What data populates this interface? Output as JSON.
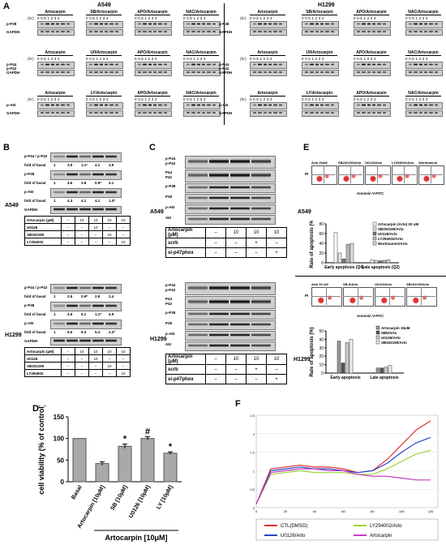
{
  "panel_letters": {
    "A": "A",
    "B": "B",
    "C": "C",
    "D": "D",
    "E": "E",
    "F": "F"
  },
  "cells": {
    "a549": "A549",
    "h1299": "H1299"
  },
  "panelA": {
    "hr_label": "(hr)",
    "timepoints": "0 0.5 1 2 3 4",
    "left": {
      "row1": [
        "Artocarpin",
        "SB/Artocarpin",
        "APO/Artocarpin",
        "NAC/Artocarpin"
      ],
      "row2": [
        "Artocarpin",
        "U0/Artocarpin",
        "APO/Artocarpin",
        "NAC/Artocarpin"
      ],
      "row3": [
        "Artocarpin",
        "LY/Artocarpin",
        "APO/Artocarpin",
        "NAC/Artocarpin"
      ]
    },
    "right": {
      "row1": [
        "Artocarpin",
        "SB/Artocarpin",
        "APO/Artocarpin",
        "NAC/Artocarpin"
      ],
      "row2": [
        "Artocarpin",
        "U0/Artocarpin",
        "APO/Artocarpin",
        "NAC/Artocarpin"
      ],
      "row3": [
        "Artocarpin",
        "LY/Artocarpin",
        "APO/Artocarpin",
        "NAC/Artocarpin"
      ]
    },
    "labels": {
      "p38": "p-P38",
      "gapdh": "GAPDH",
      "p44": "p-P44",
      "p42": "p-P42",
      "akt": "p-Akt"
    }
  },
  "panelB": {
    "fold": "fold of basal",
    "a549": {
      "rows": [
        {
          "label": "p-P44 / p-P42",
          "values": [
            "1",
            "3.9",
            "1.1*",
            "4.1",
            "3.9"
          ]
        },
        {
          "label": "p-P38",
          "values": [
            "1",
            "4.6",
            "3.8",
            "0.9*",
            "4.1"
          ]
        },
        {
          "label": "p-Akt",
          "values": [
            "1",
            "4.3",
            "4.1",
            "4.1",
            "1.3*"
          ]
        }
      ],
      "gapdh": "GAPDH",
      "table": {
        "head": "Artocarpin (μM)",
        "head_vals": [
          "–",
          "10",
          "10",
          "10",
          "10"
        ],
        "rows": [
          {
            "label": "U0126",
            "vals": [
              "–",
              "–",
              "10",
              "–",
              "–"
            ]
          },
          {
            "label": "SB202190",
            "vals": [
              "–",
              "–",
              "–",
              "10",
              "–"
            ]
          },
          {
            "label": "LY294002",
            "vals": [
              "–",
              "–",
              "–",
              "–",
              "10"
            ]
          }
        ]
      }
    },
    "h1299": {
      "rows": [
        {
          "label": "p-P44 / p-P42",
          "values": [
            "1",
            "2.5",
            "0.9*",
            "2.9",
            "2.4"
          ]
        },
        {
          "label": "p-P38",
          "values": [
            "1",
            "4.9",
            "5.1",
            "1.1*",
            "4.9"
          ]
        },
        {
          "label": "p-Akt",
          "values": [
            "1",
            "6.5",
            "6.3",
            "5.3",
            "2.2*"
          ]
        }
      ],
      "gapdh": "GAPDH",
      "table": {
        "head": "Artocarpin (μM)",
        "head_vals": [
          "–",
          "10",
          "10",
          "10",
          "10"
        ],
        "rows": [
          {
            "label": "U0126",
            "vals": [
              "–",
              "–",
              "10",
              "–",
              "–"
            ]
          },
          {
            "label": "SB202190",
            "vals": [
              "–",
              "–",
              "–",
              "10",
              "–"
            ]
          },
          {
            "label": "LY294002",
            "vals": [
              "–",
              "–",
              "–",
              "–",
              "10"
            ]
          }
        ]
      }
    }
  },
  "panelC": {
    "labels": [
      "p-P44",
      "p-P42",
      "P44",
      "P42",
      "p-P38",
      "P38",
      "p-Akt",
      "Akt"
    ],
    "table": {
      "head": "Artocarpin",
      "unit": "(μM)",
      "head_vals": [
        "–",
        "10",
        "10",
        "10"
      ],
      "rows": [
        {
          "label": "scrb",
          "vals": [
            "–",
            "–",
            "+",
            "–"
          ]
        },
        {
          "label": "si-p47phox",
          "vals": [
            "–",
            "–",
            "–",
            "+"
          ]
        }
      ]
    }
  },
  "panelD": {
    "ylabel": "cell viability (% of control)",
    "xgroup": "Artocarpin [10μM]",
    "xtick": "Artocarpin [10μM]"
  },
  "panelE": {
    "top_titles": [
      "Arto 20uM",
      "SB202190/Arto",
      "U0126/Arto",
      "LY294002/Arto",
      "Wortmannin"
    ],
    "bottom_titles": [
      "Arto 15 uM",
      "SB-5/Arto",
      "U0126/Arto",
      "SB202190/Arto"
    ],
    "axis_x": "Annexin V-FITC",
    "axis_y": "PI",
    "top_legend": [
      "Artocarpin (Arto) 20 uM",
      "SB202190/Arto",
      "U0126/Arto",
      "LY294002/Arto",
      "Wortmannin/Arto"
    ],
    "bottom_legend": [
      "Artocarpin 15uM",
      "SB5/Arto",
      "U0126/Arto",
      "SB202190/Arto"
    ],
    "ylabel": "Rate of apoptosis (%)",
    "top_xcats": [
      "Early apoptosis (Q4)",
      "Late apoptosis (Q2)"
    ],
    "bottom_xcats": [
      "Early apoptosis",
      "Late apoptosis"
    ]
  },
  "panelF": {
    "legend": [
      "CTL(DMSO)",
      "LY294002/Arto",
      "U0126/Arto",
      "Artocarpin"
    ],
    "colors": {
      "ctl": "#e0322a",
      "ly": "#9bd236",
      "u0": "#2e44c8",
      "arto": "#c23fc0"
    }
  },
  "chart_data": [
    {
      "type": "bar",
      "categories": [
        "Basal",
        "Artocarpin [10μM]",
        "SB [10μM]",
        "U0126 [10μM]",
        "LY [10μM]"
      ],
      "values": [
        100,
        42,
        82,
        100,
        66
      ],
      "errors": [
        0,
        4,
        5,
        4,
        3
      ],
      "annotations": [
        "",
        "",
        "*",
        "#",
        "*"
      ],
      "ylabel": "cell viability (% of control)",
      "xlabel": "Artocarpin [10μM]",
      "ylim": [
        0,
        150
      ],
      "yticks": [
        0,
        50,
        100,
        150
      ]
    },
    {
      "type": "bar",
      "categories": [
        "Early apoptosis (Q4)",
        "Late apoptosis (Q2)"
      ],
      "series": [
        {
          "name": "Artocarpin (Arto) 20 uM",
          "values": [
            62,
            6
          ]
        },
        {
          "name": "SB202190/Arto",
          "values": [
            20,
            5
          ]
        },
        {
          "name": "U0126/Arto",
          "values": [
            8,
            4
          ]
        },
        {
          "name": "LY294002/Arto",
          "values": [
            38,
            5
          ]
        },
        {
          "name": "Wortmannin/Arto",
          "values": [
            40,
            6
          ]
        }
      ],
      "ylabel": "Rate of apoptosis (%)",
      "ylim": [
        0,
        80
      ],
      "yticks": [
        0,
        20,
        40,
        60,
        80
      ]
    },
    {
      "type": "bar",
      "categories": [
        "Early apoptosis",
        "Late apoptosis"
      ],
      "series": [
        {
          "name": "Artocarpin 15uM",
          "values": [
            38,
            6
          ]
        },
        {
          "name": "SB5/Arto",
          "values": [
            12,
            6
          ]
        },
        {
          "name": "U0126/Arto",
          "values": [
            36,
            7
          ]
        },
        {
          "name": "SB202190/Arto",
          "values": [
            40,
            9
          ]
        }
      ],
      "ylabel": "Rate of apoptosis (%)",
      "ylim": [
        0,
        50
      ],
      "yticks": [
        0,
        10,
        20,
        30,
        40,
        50
      ]
    },
    {
      "type": "line",
      "x": [
        0,
        10,
        20,
        30,
        40,
        50,
        60,
        70,
        80,
        90,
        100,
        110,
        120
      ],
      "series": [
        {
          "name": "CTL(DMSO)",
          "values": [
            0.1,
            1.05,
            1.1,
            1.15,
            1.1,
            1.1,
            1.05,
            0.95,
            1.0,
            1.3,
            1.7,
            2.1,
            2.35
          ]
        },
        {
          "name": "LY294002/Arto",
          "values": [
            0.1,
            0.9,
            0.95,
            1.0,
            0.95,
            0.95,
            0.95,
            0.9,
            0.9,
            1.05,
            1.25,
            1.45,
            1.55
          ]
        },
        {
          "name": "U0126/Arto",
          "values": [
            0.1,
            1.0,
            1.05,
            1.1,
            1.05,
            1.05,
            1.0,
            0.95,
            1.0,
            1.2,
            1.5,
            1.75,
            1.9
          ]
        },
        {
          "name": "Artocarpin",
          "values": [
            0.1,
            0.95,
            1.0,
            1.05,
            1.05,
            1.0,
            1.0,
            0.9,
            0.85,
            0.85,
            0.8,
            0.75,
            0.75
          ]
        }
      ],
      "ylim": [
        0,
        2.5
      ],
      "xlim": [
        0,
        125
      ],
      "yticks": [
        0,
        0.5,
        1.0,
        1.5,
        2.0,
        2.5
      ],
      "xticks": [
        0,
        20,
        40,
        60,
        80,
        100,
        120
      ]
    }
  ]
}
